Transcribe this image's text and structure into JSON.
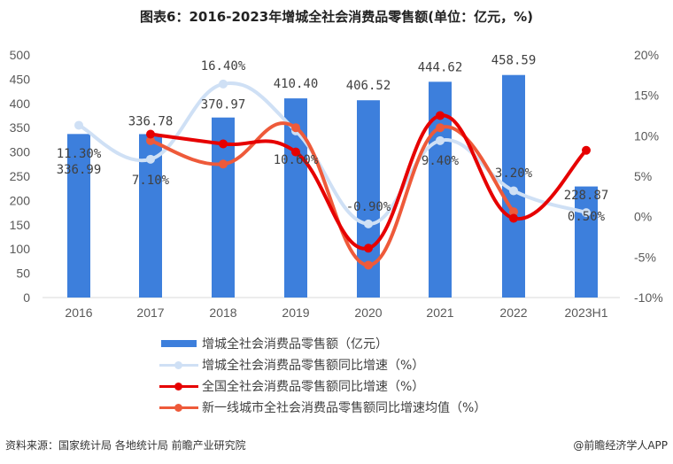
{
  "title": "图表6：2016-2023年增城全社会消费品零售额(单位：亿元，%)",
  "chart_data": {
    "type": "bar",
    "title": "图表6：2016-2023年增城全社会消费品零售额(单位：亿元，%)",
    "categories": [
      "2016",
      "2017",
      "2018",
      "2019",
      "2020",
      "2021",
      "2022",
      "2023H1"
    ],
    "series": [
      {
        "name": "增城全社会消费品零售额（亿元）",
        "type": "bar",
        "axis": "left",
        "color": "#3d7fdc",
        "values": [
          336.99,
          336.78,
          370.97,
          410.4,
          406.52,
          444.62,
          458.59,
          228.87
        ],
        "labels": [
          "336.99",
          "336.78",
          "370.97",
          "410.40",
          "406.52",
          "444.62",
          "458.59",
          "228.87"
        ]
      },
      {
        "name": "增城全社会消费品零售额同比增速（%）",
        "type": "line",
        "axis": "right",
        "color": "#cfe0f5",
        "values": [
          11.3,
          7.1,
          16.4,
          10.6,
          -0.9,
          9.4,
          3.2,
          0.5
        ],
        "labels": [
          "11.30%",
          "7.10%",
          "16.40%",
          "10.60%",
          "-0.90%",
          "9.40%",
          "3.20%",
          "0.50%"
        ]
      },
      {
        "name": "全国全社会消费品零售额同比增速（%）",
        "type": "line",
        "axis": "right",
        "color": "#e60000",
        "values": [
          null,
          10.2,
          9.0,
          8.0,
          -3.9,
          12.5,
          -0.2,
          8.2
        ]
      },
      {
        "name": "新一线城市全社会消费品零售额同比增速均值（%）",
        "type": "line",
        "axis": "right",
        "color": "#ee5a3a",
        "values": [
          null,
          9.4,
          6.5,
          11.0,
          -6.0,
          11.0,
          0.6,
          null
        ]
      }
    ],
    "left_axis": {
      "ticks": [
        0,
        50,
        100,
        150,
        200,
        250,
        300,
        350,
        400,
        450,
        500
      ],
      "ylim": [
        0,
        500
      ]
    },
    "right_axis": {
      "ticks": [
        "-10%",
        "-5%",
        "0%",
        "5%",
        "10%",
        "15%",
        "20%"
      ],
      "ylim": [
        -10,
        20
      ]
    },
    "xlabel": "",
    "ylabel": "",
    "grid": false,
    "legend_position": "bottom"
  },
  "legend": [
    "增城全社会消费品零售额（亿元）",
    "增城全社会消费品零售额同比增速（%）",
    "全国全社会消费品零售额同比增速（%）",
    "新一线城市全社会消费品零售额同比增速均值（%）"
  ],
  "footer": {
    "source": "资料来源：国家统计局 各地统计局 前瞻产业研究院",
    "credit": "@前瞻经济学人APP"
  }
}
